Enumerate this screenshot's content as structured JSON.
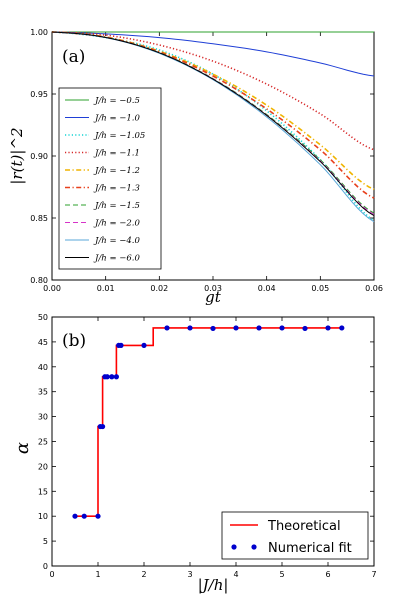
{
  "chart_data": [
    {
      "type": "line",
      "panel_label": "(a)",
      "xlabel": "gt",
      "ylabel": "|r(t)|^2",
      "xlim": [
        0.0,
        0.06
      ],
      "ylim": [
        0.8,
        1.0
      ],
      "xticks": [
        "0.00",
        "0.01",
        "0.02",
        "0.03",
        "0.04",
        "0.05",
        "0.06"
      ],
      "yticks": [
        "0.80",
        "0.85",
        "0.90",
        "0.95",
        "1.00"
      ],
      "legend_position": "lower-left",
      "x": [
        0.0,
        0.01,
        0.02,
        0.03,
        0.04,
        0.05,
        0.06
      ],
      "series": [
        {
          "name": "J/h = −0.5",
          "color": "#2ca02c",
          "dash": "solid",
          "values": [
            1.0,
            1.0,
            1.0,
            1.0,
            1.0,
            1.0,
            1.0
          ]
        },
        {
          "name": "J/h = −1.0",
          "color": "#1f3fd6",
          "dash": "solid",
          "values": [
            1.0,
            0.9985,
            0.9955,
            0.9905,
            0.984,
            0.975,
            0.9645
          ]
        },
        {
          "name": "J/h = −1.05",
          "color": "#17d4d4",
          "dash": "dotted",
          "values": [
            1.0,
            0.9955,
            0.9855,
            0.966,
            0.9365,
            0.897,
            0.848
          ]
        },
        {
          "name": "J/h = −1.1",
          "color": "#d62728",
          "dash": "dotted",
          "values": [
            1.0,
            0.9975,
            0.9895,
            0.9765,
            0.958,
            0.934,
            0.905
          ]
        },
        {
          "name": "J/h = −1.2",
          "color": "#f0b400",
          "dash": "dashdot",
          "values": [
            1.0,
            0.996,
            0.9845,
            0.966,
            0.941,
            0.909,
            0.873
          ]
        },
        {
          "name": "J/h = −1.3",
          "color": "#e8401c",
          "dash": "dashdot",
          "values": [
            1.0,
            0.9958,
            0.984,
            0.9645,
            0.938,
            0.905,
            0.866
          ]
        },
        {
          "name": "J/h = −1.5",
          "color": "#2ca02c",
          "dash": "dashed",
          "values": [
            1.0,
            0.9957,
            0.9835,
            0.9625,
            0.9335,
            0.897,
            0.854
          ]
        },
        {
          "name": "J/h = −2.0",
          "color": "#d633c8",
          "dash": "dashed",
          "values": [
            1.0,
            0.9956,
            0.9832,
            0.9622,
            0.933,
            0.896,
            0.853
          ]
        },
        {
          "name": "J/h = −4.0",
          "color": "#5aa7d8",
          "dash": "solid",
          "values": [
            1.0,
            0.9955,
            0.9828,
            0.9615,
            0.9315,
            0.893,
            0.847
          ]
        },
        {
          "name": "J/h = −6.0",
          "color": "#000000",
          "dash": "solid",
          "values": [
            1.0,
            0.9956,
            0.9832,
            0.962,
            0.9328,
            0.8955,
            0.852
          ]
        }
      ]
    },
    {
      "type": "line",
      "panel_label": "(b)",
      "xlabel": "|J/h|",
      "ylabel": "α",
      "xlim": [
        0,
        7
      ],
      "ylim": [
        0,
        50
      ],
      "xticks": [
        "0",
        "1",
        "2",
        "3",
        "4",
        "5",
        "6",
        "7"
      ],
      "yticks": [
        "0",
        "5",
        "10",
        "15",
        "20",
        "25",
        "30",
        "35",
        "40",
        "45",
        "50"
      ],
      "legend_position": "lower-right",
      "series": [
        {
          "name": "Theoretical",
          "color": "#ff0000",
          "style": "line",
          "x": [
            0.5,
            1.0,
            1.0,
            1.1,
            1.1,
            1.4,
            1.4,
            1.8,
            1.8,
            2.2,
            2.2,
            6.3
          ],
          "values": [
            10.0,
            10.0,
            28.0,
            28.0,
            38.0,
            38.0,
            44.3,
            44.3,
            44.3,
            44.3,
            47.8,
            47.8
          ]
        },
        {
          "name": "Numerical fit",
          "color": "#0000cc",
          "style": "markers",
          "x": [
            0.5,
            0.7,
            1.0,
            1.05,
            1.1,
            1.15,
            1.2,
            1.3,
            1.4,
            1.45,
            1.5,
            2.0,
            2.5,
            3.0,
            3.5,
            4.0,
            4.5,
            5.0,
            5.5,
            6.0,
            6.3
          ],
          "values": [
            10.0,
            10.0,
            10.0,
            28.0,
            28.0,
            38.0,
            38.0,
            38.0,
            38.0,
            44.3,
            44.3,
            44.3,
            47.8,
            47.8,
            47.7,
            47.8,
            47.8,
            47.8,
            47.7,
            47.8,
            47.8
          ]
        }
      ]
    }
  ]
}
